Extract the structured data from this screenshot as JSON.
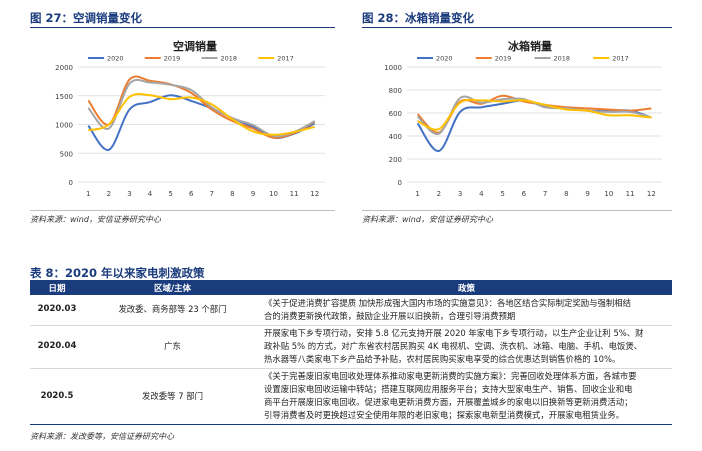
{
  "figures": [
    {
      "heading": "图 27：空调销量变化",
      "source": "资料来源：wind，安信证券研究中心",
      "chart_data": {
        "type": "line",
        "title": "空调销量",
        "x": [
          "1",
          "2",
          "3",
          "4",
          "5",
          "6",
          "7",
          "8",
          "9",
          "10",
          "11",
          "12"
        ],
        "ylim": [
          0,
          2000
        ],
        "yticks": [
          0,
          500,
          1000,
          1500,
          2000
        ],
        "grid": true,
        "legend_position": "top",
        "series": [
          {
            "name": "2020",
            "color": "#4472c4",
            "values": [
              980,
              560,
              1260,
              1390,
              1510,
              1410,
              1280,
              1110,
              960,
              770,
              840,
              1020
            ]
          },
          {
            "name": "2019",
            "color": "#ed7d31",
            "values": [
              1420,
              1000,
              1780,
              1760,
              1700,
              1550,
              1260,
              1060,
              930,
              770,
              850,
              1050
            ]
          },
          {
            "name": "2018",
            "color": "#a5a5a5",
            "values": [
              1290,
              930,
              1710,
              1730,
              1690,
              1600,
              1300,
              1110,
              990,
              800,
              870,
              1060
            ]
          },
          {
            "name": "2017",
            "color": "#ffc000",
            "values": [
              900,
              1000,
              1480,
              1510,
              1440,
              1470,
              1350,
              1090,
              880,
              820,
              870,
              960
            ]
          }
        ]
      }
    },
    {
      "heading": "图 28：冰箱销量变化",
      "source": "资料来源：wind，安信证券研究中心",
      "chart_data": {
        "type": "line",
        "title": "冰箱销量",
        "x": [
          "1",
          "2",
          "3",
          "4",
          "5",
          "6",
          "7",
          "8",
          "9",
          "10",
          "11",
          "12"
        ],
        "ylim": [
          0,
          1000
        ],
        "yticks": [
          0,
          200,
          400,
          600,
          800,
          1000
        ],
        "grid": true,
        "legend_position": "top",
        "series": [
          {
            "name": "2020",
            "color": "#4472c4",
            "values": [
              510,
              270,
              610,
              650,
              680,
              710,
              660,
              640,
              620,
              620,
              620,
              560
            ]
          },
          {
            "name": "2019",
            "color": "#ed7d31",
            "values": [
              590,
              430,
              700,
              680,
              750,
              700,
              670,
              650,
              640,
              630,
              620,
              640
            ]
          },
          {
            "name": "2018",
            "color": "#a5a5a5",
            "values": [
              570,
              420,
              730,
              690,
              720,
              720,
              650,
              640,
              620,
              610,
              610,
              560
            ]
          },
          {
            "name": "2017",
            "color": "#ffc000",
            "values": [
              530,
              460,
              690,
              710,
              700,
              710,
              670,
              630,
              620,
              580,
              580,
              560
            ]
          }
        ]
      }
    }
  ],
  "table": {
    "title": "表 8：2020 年以来家电刺激政策",
    "headers": [
      "日期",
      "区域/主体",
      "政策"
    ],
    "rows": [
      {
        "date": "2020.03",
        "org": "发改委、商务部等 23 个部门",
        "lines": [
          "《关于促进消费扩容提质 加快形成强大国内市场的实施意见》：各地区结合实际制定奖励与强制相结",
          "合的消费更新换代政策，鼓励企业开展以旧换新，合理引导消费预期"
        ]
      },
      {
        "date": "2020.04",
        "org": "广东",
        "lines": [
          "开展家电下乡专项行动，安排 5.8 亿元支持开展 2020 年家电下乡专项行动，以生产企业让利 5%、财",
          "政补贴 5% 的方式，对广东省农村居民购买 4K 电视机、空调、洗衣机、冰箱、电脑、手机、电饭煲、",
          "热水器等八类家电下乡产品给予补贴，农村居民购买家电享受的综合优惠达到销售价格的 10%。"
        ]
      },
      {
        "date": "2020.5",
        "org": "发改委等 7 部门",
        "lines": [
          "《关于完善废旧家电回收处理体系推动家电更新消费的实施方案》：完善回收处理体系方面，各城市要",
          "设置废旧家电回收运输中转站；搭建互联网应用服务平台；支持大型家电生产、销售、回收企业和电",
          "商平台开展废旧家电回收。促进家电更新消费方面，开展覆盖城乡的家电以旧换新等更新消费活动；",
          "引导消费者及时更换超过安全使用年限的老旧家电；探索家电新型消费模式，开展家电租赁业务。"
        ]
      }
    ],
    "source": "资料来源：发改委等，安信证券研究中心"
  }
}
